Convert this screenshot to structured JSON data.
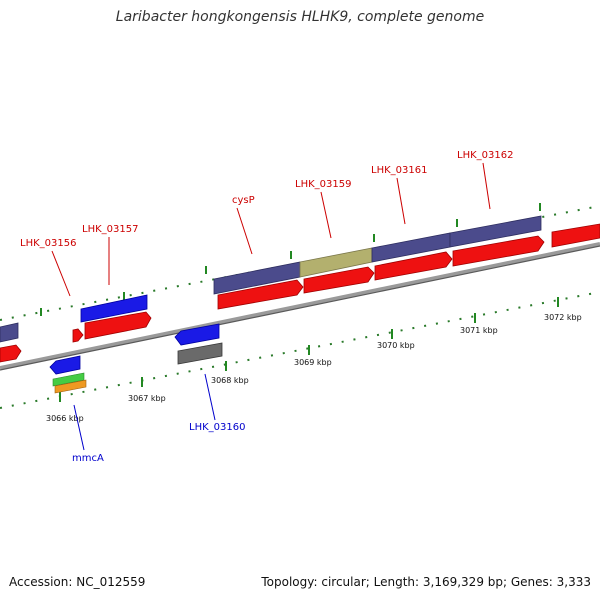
{
  "title": "Laribacter hongkongensis HLHK9, complete genome",
  "footer": {
    "accession": "Accession: NC_012559",
    "summary": "Topology: circular; Length: 3,169,329 bp; Genes: 3,333"
  },
  "colors": {
    "backbone": "#8a8a8a",
    "cds_red": "#ee1111",
    "cds_purple": "#4b4b8c",
    "cds_olive": "#b3b06e",
    "cds_blue": "#1a1ae6",
    "cds_gray": "#6a6a6a",
    "cds_green": "#44cc44",
    "cds_orange": "#ee9922",
    "tick_green": "#228822",
    "label_red": "#cc0000",
    "label_blue": "#0000cc"
  },
  "gene_labels": {
    "lhk_03156": "LHK_03156",
    "lhk_03157": "LHK_03157",
    "cysp": "cysP",
    "lhk_03159": "LHK_03159",
    "lhk_03161": "LHK_03161",
    "lhk_03162": "LHK_03162",
    "lhk_03160": "LHK_03160",
    "mmca": "mmcA"
  },
  "scale_labels": {
    "kbp_3066": "3066 kbp",
    "kbp_3067": "3067 kbp",
    "kbp_3068": "3068 kbp",
    "kbp_3069": "3069 kbp",
    "kbp_3070": "3070 kbp",
    "kbp_3071": "3071 kbp",
    "kbp_3072": "3072 kbp"
  }
}
